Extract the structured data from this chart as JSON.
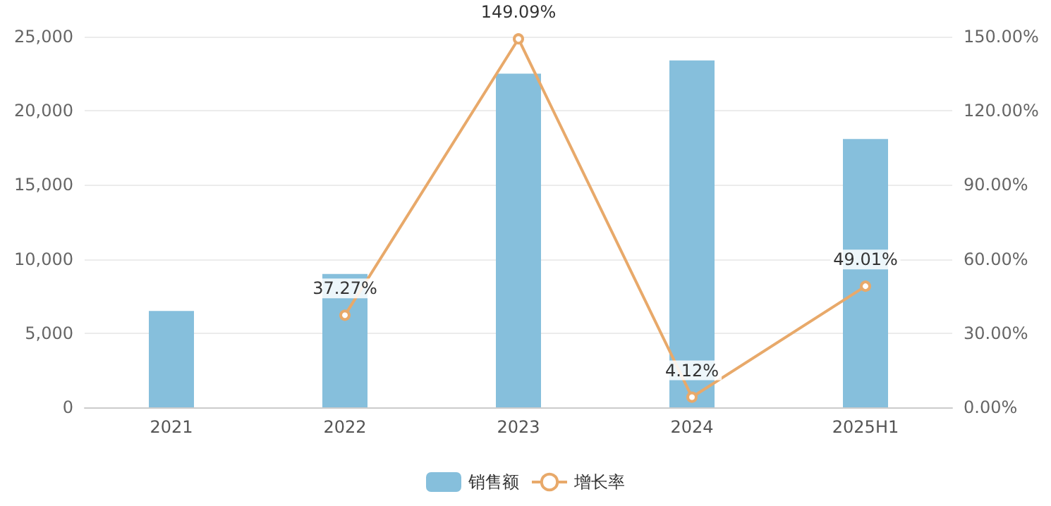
{
  "chart_data": {
    "type": "bar",
    "categories": [
      "2021",
      "2022",
      "2023",
      "2024",
      "2025H1"
    ],
    "series": [
      {
        "name": "销售额",
        "color": "#86bfdc",
        "values": [
          6500,
          9000,
          22500,
          23400,
          18100
        ]
      },
      {
        "name": "增长率",
        "type": "line",
        "axis": "y2",
        "color": "#e8a96a",
        "values": [
          null,
          37.27,
          149.09,
          4.12,
          49.01
        ],
        "value_labels": [
          null,
          "37.27%",
          "149.09%",
          "4.12%",
          "49.01%"
        ]
      }
    ],
    "ylim": [
      0,
      25000
    ],
    "yticks": [
      {
        "value": 0,
        "label": "0"
      },
      {
        "value": 5000,
        "label": "5,000"
      },
      {
        "value": 10000,
        "label": "10,000"
      },
      {
        "value": 15000,
        "label": "15,000"
      },
      {
        "value": 20000,
        "label": "20,000"
      },
      {
        "value": 25000,
        "label": "25,000"
      }
    ],
    "y2lim": [
      0,
      150
    ],
    "y2ticks": [
      {
        "value": 0,
        "label": "0.00%"
      },
      {
        "value": 30,
        "label": "30.00%"
      },
      {
        "value": 60,
        "label": "60.00%"
      },
      {
        "value": 90,
        "label": "90.00%"
      },
      {
        "value": 120,
        "label": "120.00%"
      },
      {
        "value": 150,
        "label": "150.00%"
      }
    ],
    "grid": "y",
    "legend": "bottom",
    "marker": "circle",
    "line_style": "solid"
  }
}
